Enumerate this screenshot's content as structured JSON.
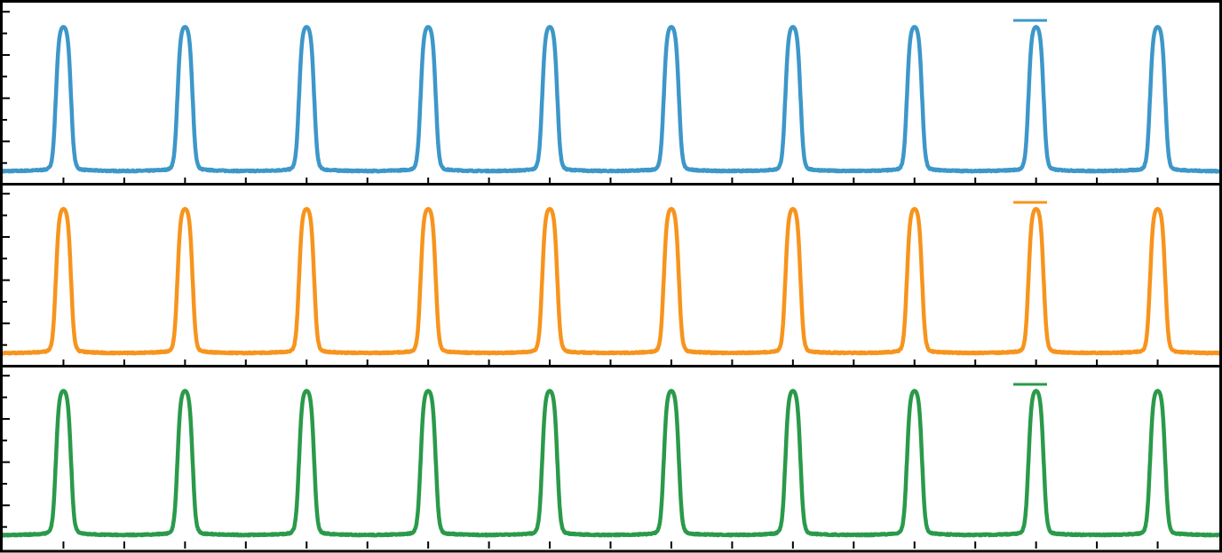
{
  "chart_data": [
    {
      "type": "line",
      "panel": 1,
      "title": "",
      "xlabel": "",
      "ylabel": "",
      "xlim": [
        0,
        20
      ],
      "ylim": [
        0,
        1.08
      ],
      "grid": false,
      "legend": "top-right",
      "series": [
        {
          "color": "#3d97c9",
          "pulse_period": 2,
          "pulse_centers": [
            1,
            3,
            5,
            7,
            9,
            11,
            13,
            15,
            17,
            19
          ],
          "pulse_width": 0.25,
          "high": 1.0,
          "low": 0.0
        }
      ]
    },
    {
      "type": "line",
      "panel": 2,
      "title": "",
      "xlabel": "",
      "ylabel": "",
      "xlim": [
        0,
        20
      ],
      "ylim": [
        0,
        1.08
      ],
      "grid": false,
      "legend": "top-right",
      "series": [
        {
          "color": "#f7941d",
          "pulse_period": 2,
          "pulse_centers": [
            1,
            3,
            5,
            7,
            9,
            11,
            13,
            15,
            17,
            19
          ],
          "pulse_width": 0.25,
          "high": 1.0,
          "low": 0.0
        }
      ]
    },
    {
      "type": "line",
      "panel": 3,
      "title": "",
      "xlabel": "",
      "ylabel": "",
      "xlim": [
        0,
        20
      ],
      "ylim": [
        0,
        1.08
      ],
      "grid": false,
      "legend": "top-right",
      "series": [
        {
          "color": "#2a9a4a",
          "pulse_period": 2,
          "pulse_centers": [
            1,
            3,
            5,
            7,
            9,
            11,
            13,
            15,
            17,
            19
          ],
          "pulse_width": 0.25,
          "high": 1.0,
          "low": 0.0
        }
      ]
    }
  ]
}
